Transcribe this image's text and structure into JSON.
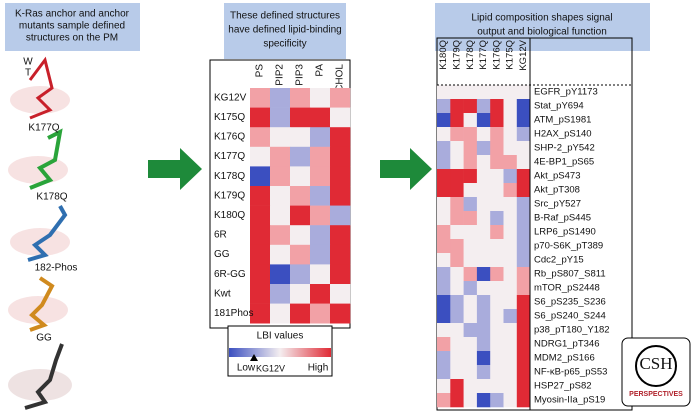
{
  "panels": [
    {
      "title": [
        "K-Ras anchor and anchor",
        "mutants sample defined",
        "structures on the PM"
      ]
    },
    {
      "title": [
        "These defined structures",
        "have defined lipid-binding",
        "specificity"
      ]
    },
    {
      "title": [
        "Lipid composition shapes signal",
        "output and biological function"
      ]
    }
  ],
  "structures": [
    [
      "W",
      "T"
    ],
    [
      "K177Q"
    ],
    [
      "K178Q"
    ],
    [
      "182-Phos"
    ],
    [
      "GG"
    ]
  ],
  "lipid_map": {
    "columns": [
      "PS",
      "PIP2",
      "PIP3",
      "PA",
      "CHOL"
    ],
    "rows": [
      "KG12V",
      "K175Q",
      "K176Q",
      "K177Q",
      "K178Q",
      "K179Q",
      "K180Q",
      "6R",
      "GG",
      "6R-GG",
      "Kwt",
      "181Phos"
    ],
    "colors": [
      [
        "#f2a1a6",
        "#a9acdc",
        "#f2a1a6",
        "#f4eef0",
        "#f2a1a6"
      ],
      [
        "#e02a35",
        "#a9acdc",
        "#e02a35",
        "#e02a35",
        "#f4eef0"
      ],
      [
        "#f2a1a6",
        "#f4eef0",
        "#f4eef0",
        "#a9acdc",
        "#e02a35"
      ],
      [
        "#f4eef0",
        "#f2a1a6",
        "#a9acdc",
        "#f2a1a6",
        "#e02a35"
      ],
      [
        "#3b4fc0",
        "#f2a1a6",
        "#f4eef0",
        "#f2a1a6",
        "#e02a35"
      ],
      [
        "#e02a35",
        "#f4eef0",
        "#f2a1a6",
        "#a9acdc",
        "#e02a35"
      ],
      [
        "#e02a35",
        "#f4eef0",
        "#e02a35",
        "#f2a1a6",
        "#a9acdc"
      ],
      [
        "#e02a35",
        "#f2a1a6",
        "#f4eef0",
        "#a9acdc",
        "#e02a35"
      ],
      [
        "#e02a35",
        "#f4eef0",
        "#f2a1a6",
        "#a9acdc",
        "#e02a35"
      ],
      [
        "#e02a35",
        "#3b4fc0",
        "#a9acdc",
        "#f4eef0",
        "#e02a35"
      ],
      [
        "#e02a35",
        "#a9acdc",
        "#f4eef0",
        "#e02a35",
        "#f4eef0"
      ],
      [
        "#e02a35",
        "#f4eef0",
        "#e02a35",
        "#f2a1a6",
        "#e02a35"
      ]
    ]
  },
  "legend": {
    "title": "LBI values",
    "low": "Low",
    "marker": "KG12V",
    "high": "High"
  },
  "signal_map": {
    "columns": [
      "K180Q",
      "K179Q",
      "K178Q",
      "K177Q",
      "K176Q",
      "K175Q",
      "KG12V"
    ],
    "rows": [
      "EGFR_pY1173",
      "Stat_pY694",
      "ATM_pS1981",
      "H2AX_pS140",
      "SHP-2_pY542",
      "4E-BP1_pS65",
      "Akt_pS473",
      "Akt_pT308",
      "Src_pY527",
      "B-Raf_pS445",
      "LRP6_pS1490",
      "p70-S6K_pT389",
      "Cdc2_pY15",
      "Rb_pS807_S811",
      "mTOR_pS2448",
      "S6_pS235_S236",
      "S6_pS240_S244",
      "p38_pT180_Y182",
      "NDRG1_pT346",
      "MDM2_pS166",
      "NF-κB-p65_pS53",
      "HSP27_pS82",
      "Myosin-IIa_pS19"
    ],
    "colors": [
      [
        "#f4eef0",
        "#f4eef0",
        "#f4eef0",
        "#f4eef0",
        "#f4eef0",
        "#f4eef0",
        "#f4eef0"
      ],
      [
        "#a9acdc",
        "#e02a35",
        "#e02a35",
        "#a9acdc",
        "#e02a35",
        "#f4eef0",
        "#3b4fc0"
      ],
      [
        "#3b4fc0",
        "#e02a35",
        "#f4eef0",
        "#3b4fc0",
        "#e02a35",
        "#f4eef0",
        "#3b4fc0"
      ],
      [
        "#f4eef0",
        "#f2a1a6",
        "#f2a1a6",
        "#f4eef0",
        "#f2a1a6",
        "#f4eef0",
        "#a9acdc"
      ],
      [
        "#a9acdc",
        "#f4eef0",
        "#f2a1a6",
        "#a9acdc",
        "#f2a1a6",
        "#f4eef0",
        "#f4eef0"
      ],
      [
        "#a9acdc",
        "#f4eef0",
        "#f2a1a6",
        "#f4eef0",
        "#f2a1a6",
        "#f2a1a6",
        "#f4eef0"
      ],
      [
        "#e02a35",
        "#e02a35",
        "#e02a35",
        "#f4eef0",
        "#f4eef0",
        "#a9acdc",
        "#e02a35"
      ],
      [
        "#e02a35",
        "#e02a35",
        "#f4eef0",
        "#f4eef0",
        "#f4eef0",
        "#f2a1a6",
        "#e02a35"
      ],
      [
        "#f4eef0",
        "#f2a1a6",
        "#a9acdc",
        "#f4eef0",
        "#f4eef0",
        "#f4eef0",
        "#a9acdc"
      ],
      [
        "#f4eef0",
        "#f2a1a6",
        "#f2a1a6",
        "#f4eef0",
        "#a9acdc",
        "#f4eef0",
        "#a9acdc"
      ],
      [
        "#f2a1a6",
        "#f4eef0",
        "#f4eef0",
        "#f4eef0",
        "#f2a1a6",
        "#f4eef0",
        "#a9acdc"
      ],
      [
        "#f2a1a6",
        "#f2a1a6",
        "#f4eef0",
        "#f4eef0",
        "#f4eef0",
        "#f4eef0",
        "#a9acdc"
      ],
      [
        "#f4eef0",
        "#f2a1a6",
        "#f4eef0",
        "#f4eef0",
        "#f4eef0",
        "#f4eef0",
        "#a9acdc"
      ],
      [
        "#a9acdc",
        "#f4eef0",
        "#f2a1a6",
        "#3b4fc0",
        "#f2a1a6",
        "#f4eef0",
        "#f2a1a6"
      ],
      [
        "#a9acdc",
        "#f4eef0",
        "#a9acdc",
        "#f4eef0",
        "#f4eef0",
        "#f4eef0",
        "#f2a1a6"
      ],
      [
        "#3b4fc0",
        "#a9acdc",
        "#f4eef0",
        "#a9acdc",
        "#f4eef0",
        "#f4eef0",
        "#e02a35"
      ],
      [
        "#3b4fc0",
        "#a9acdc",
        "#f4eef0",
        "#a9acdc",
        "#f4eef0",
        "#a9acdc",
        "#e02a35"
      ],
      [
        "#f4eef0",
        "#f4eef0",
        "#a9acdc",
        "#a9acdc",
        "#f4eef0",
        "#f4eef0",
        "#e02a35"
      ],
      [
        "#f2a1a6",
        "#f4eef0",
        "#f4eef0",
        "#a9acdc",
        "#f4eef0",
        "#f4eef0",
        "#e02a35"
      ],
      [
        "#a9acdc",
        "#f4eef0",
        "#f4eef0",
        "#3b4fc0",
        "#f4eef0",
        "#f4eef0",
        "#e02a35"
      ],
      [
        "#a9acdc",
        "#f4eef0",
        "#f4eef0",
        "#a9acdc",
        "#f4eef0",
        "#f4eef0",
        "#e02a35"
      ],
      [
        "#f4eef0",
        "#e02a35",
        "#f4eef0",
        "#f4eef0",
        "#f4eef0",
        "#f4eef0",
        "#e02a35"
      ],
      [
        "#f2a1a6",
        "#e02a35",
        "#f4eef0",
        "#3b4fc0",
        "#a9acdc",
        "#f4eef0",
        "#e02a35"
      ]
    ]
  },
  "logo": {
    "mark": "CSH",
    "name": "PERSPECTIVES"
  }
}
